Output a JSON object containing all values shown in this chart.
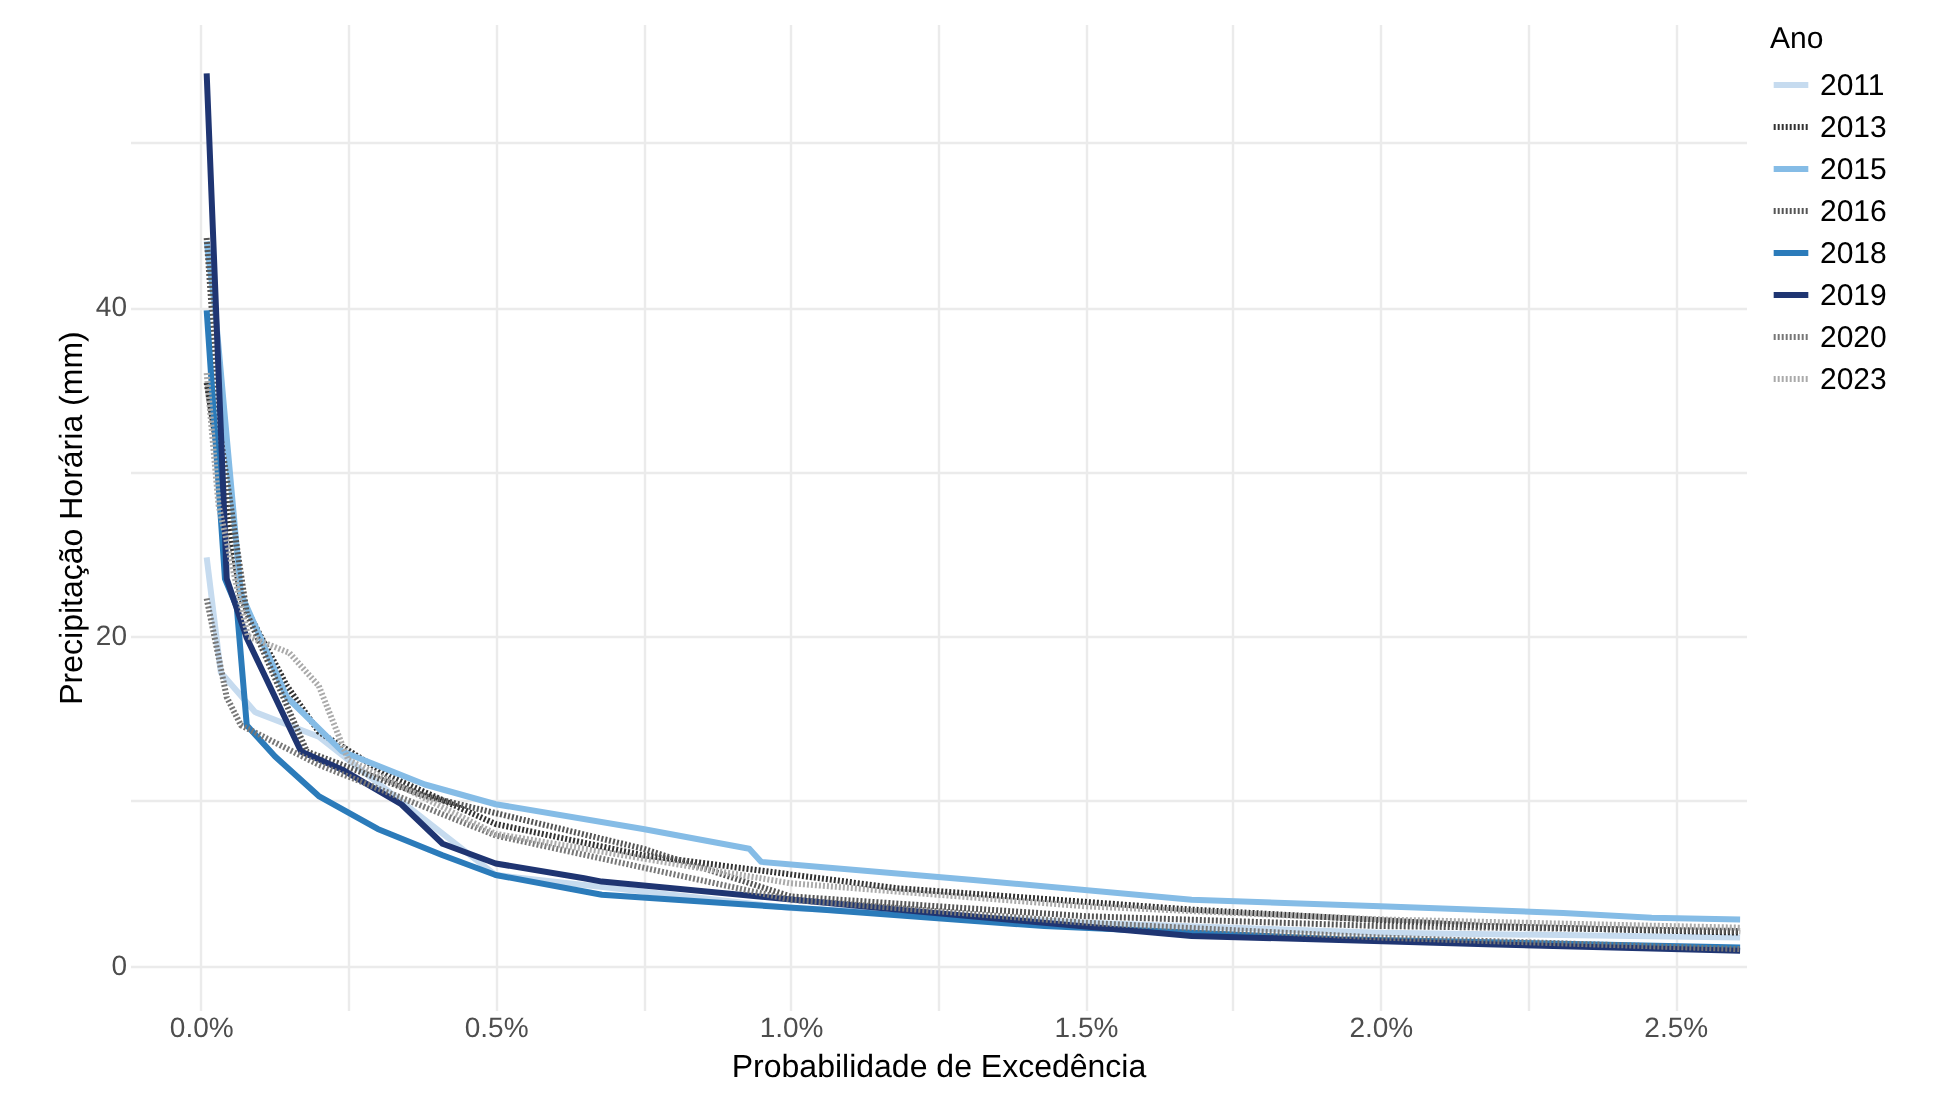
{
  "chart_data": {
    "type": "line",
    "xlabel": "Probabilidade de Excedência",
    "ylabel": "Precipitação Horária (mm)",
    "legend_title": "Ano",
    "legend": "right",
    "grid": true,
    "xlim": [
      -0.12,
      2.62
    ],
    "ylim": [
      -2.7,
      57.2
    ],
    "xticks": [
      {
        "value": 0,
        "label": "0.0%"
      },
      {
        "value": 0.25,
        "label": null
      },
      {
        "value": 0.5,
        "label": "0.5%"
      },
      {
        "value": 0.75,
        "label": null
      },
      {
        "value": 1,
        "label": "1.0%"
      },
      {
        "value": 1.25,
        "label": null
      },
      {
        "value": 1.5,
        "label": "1.5%"
      },
      {
        "value": 1.75,
        "label": null
      },
      {
        "value": 2,
        "label": "2.0%"
      },
      {
        "value": 2.25,
        "label": null
      },
      {
        "value": 2.5,
        "label": "2.5%"
      }
    ],
    "yticks": [
      0,
      {
        "value": 10,
        "label": null
      },
      20,
      {
        "value": 30,
        "label": null
      },
      40,
      {
        "value": 50,
        "label": null
      }
    ],
    "series": [
      {
        "name": "2011",
        "color": "#c6dbef",
        "line_style": "solid",
        "x": [
          0.01,
          0.034,
          0.092,
          0.2,
          0.5,
          1.0,
          1.5,
          2.0,
          2.61
        ],
        "values": [
          24.8,
          17.8,
          15.4,
          13.9,
          5.5,
          3.5,
          2.6,
          2.0,
          1.7
        ]
      },
      {
        "name": "2013",
        "color": "#333333",
        "line_style": "dotted",
        "x": [
          0.01,
          0.034,
          0.068,
          0.146,
          0.2,
          0.32,
          0.5,
          0.75,
          1.18,
          1.68,
          2.18,
          2.61
        ],
        "values": [
          35.4,
          30,
          22.3,
          17,
          14.2,
          11.5,
          8.6,
          6.7,
          4.7,
          3.4,
          2.4,
          2.0
        ]
      },
      {
        "name": "2015",
        "color": "#85bce6",
        "line_style": "solid",
        "x": [
          0.01,
          0.024,
          0.068,
          0.146,
          0.24,
          0.38,
          0.5,
          0.75,
          0.93,
          0.95,
          1.31,
          1.68,
          2.0,
          2.31,
          2.46,
          2.61
        ],
        "values": [
          44,
          40,
          22.6,
          16.3,
          13,
          11,
          9.8,
          8.3,
          7.1,
          6.3,
          5.2,
          4.0,
          3.6,
          3.2,
          2.9,
          2.8
        ]
      },
      {
        "name": "2016",
        "color": "#555555",
        "line_style": "dotted",
        "x": [
          0.01,
          0.034,
          0.078,
          0.18,
          0.38,
          0.75,
          1.0,
          1.5,
          2.0,
          2.61
        ],
        "values": [
          44.2,
          32,
          21.4,
          13,
          10.3,
          7.1,
          4.2,
          3.0,
          2.4,
          2.1
        ]
      },
      {
        "name": "2018",
        "color": "#2b7bba",
        "line_style": "solid",
        "x": [
          0.01,
          0.041,
          0.061,
          0.078,
          0.126,
          0.2,
          0.3,
          0.41,
          0.5,
          0.68,
          1.05,
          1.43,
          1.93,
          2.61
        ],
        "values": [
          39.8,
          23.5,
          21.8,
          14.6,
          12.7,
          10.3,
          8.3,
          6.7,
          5.5,
          4.3,
          3.4,
          2.4,
          1.6,
          1.1
        ]
      },
      {
        "name": "2019",
        "color": "#1f3572",
        "line_style": "solid",
        "x": [
          0.01,
          0.044,
          0.078,
          0.17,
          0.24,
          0.34,
          0.41,
          0.5,
          0.65,
          0.68,
          1.18,
          1.68,
          2.18,
          2.61
        ],
        "values": [
          54.2,
          23.5,
          19.9,
          13,
          11.9,
          9.8,
          7.4,
          6.2,
          5.3,
          5.1,
          3.4,
          1.8,
          1.3,
          0.9
        ]
      },
      {
        "name": "2020",
        "color": "#777777",
        "line_style": "dotted",
        "x": [
          0.01,
          0.044,
          0.068,
          0.2,
          0.5,
          1.0,
          1.5,
          2.0,
          2.61
        ],
        "values": [
          22.3,
          16.3,
          14.6,
          12.2,
          7.9,
          4.0,
          2.6,
          1.7,
          1.0
        ]
      },
      {
        "name": "2023",
        "color": "#aaaaaa",
        "line_style": "dotted",
        "x": [
          0.01,
          0.03,
          0.08,
          0.15,
          0.2,
          0.25,
          0.5,
          1.0,
          1.5,
          2.0,
          2.61
        ],
        "values": [
          36,
          28,
          20,
          19,
          17,
          12.5,
          8,
          5,
          3.6,
          2.8,
          2.3
        ]
      }
    ]
  }
}
